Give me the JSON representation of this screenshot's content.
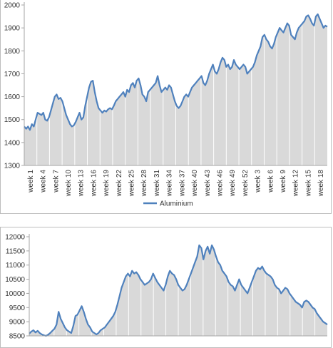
{
  "colors": {
    "line": "#4f81bd",
    "fill": "#d9d9d9",
    "axis": "#a6a6a6",
    "tick_text": "#333333",
    "panel_border": "#bdbdbd"
  },
  "chart_data": [
    {
      "type": "area",
      "title": "",
      "xlabel": "",
      "ylabel": "",
      "ylim": [
        1300,
        2000
      ],
      "yticks": [
        1300,
        1400,
        1500,
        1600,
        1700,
        1800,
        1900,
        2000
      ],
      "x_tick_labels": [
        "week 1",
        "week 4",
        "week 7",
        "week 10",
        "week 13",
        "week 16",
        "week 19",
        "week 22",
        "week 25",
        "week 28",
        "week 31",
        "week 34",
        "week 37",
        "week 40",
        "week 43",
        "week 46",
        "week 49",
        "week 52",
        "week 3",
        "week 6",
        "week 9",
        "week 12",
        "week 15",
        "week 18"
      ],
      "grid": false,
      "legend_position": "bottom",
      "series": [
        {
          "name": "Aluminium",
          "values": [
            1470,
            1460,
            1470,
            1455,
            1480,
            1470,
            1500,
            1530,
            1525,
            1520,
            1530,
            1500,
            1495,
            1510,
            1540,
            1570,
            1600,
            1610,
            1590,
            1595,
            1580,
            1550,
            1520,
            1500,
            1480,
            1470,
            1475,
            1490,
            1510,
            1530,
            1500,
            1510,
            1560,
            1600,
            1640,
            1665,
            1670,
            1620,
            1580,
            1550,
            1540,
            1530,
            1540,
            1535,
            1545,
            1550,
            1545,
            1560,
            1580,
            1590,
            1600,
            1610,
            1620,
            1600,
            1630,
            1620,
            1650,
            1660,
            1640,
            1670,
            1680,
            1650,
            1610,
            1600,
            1580,
            1620,
            1630,
            1640,
            1650,
            1660,
            1690,
            1650,
            1620,
            1630,
            1640,
            1630,
            1650,
            1640,
            1610,
            1580,
            1560,
            1550,
            1560,
            1580,
            1600,
            1610,
            1600,
            1620,
            1640,
            1650,
            1660,
            1670,
            1680,
            1690,
            1660,
            1650,
            1670,
            1700,
            1720,
            1740,
            1710,
            1700,
            1720,
            1750,
            1770,
            1760,
            1730,
            1740,
            1720,
            1730,
            1760,
            1740,
            1730,
            1720,
            1730,
            1740,
            1730,
            1700,
            1710,
            1720,
            1730,
            1750,
            1780,
            1800,
            1820,
            1860,
            1870,
            1850,
            1840,
            1820,
            1810,
            1830,
            1860,
            1880,
            1900,
            1890,
            1880,
            1900,
            1920,
            1910,
            1870,
            1860,
            1850,
            1880,
            1900,
            1910,
            1920,
            1930,
            1950,
            1955,
            1940,
            1920,
            1910,
            1950,
            1960,
            1940,
            1920,
            1900,
            1910,
            1905
          ]
        }
      ]
    },
    {
      "type": "area",
      "title": "",
      "xlabel": "",
      "ylabel": "",
      "ylim": [
        8500,
        12000
      ],
      "yticks": [
        8500,
        9000,
        9500,
        10000,
        10500,
        11000,
        11500,
        12000
      ],
      "grid": false,
      "series": [
        {
          "values": [
            8580,
            8650,
            8700,
            8620,
            8680,
            8600,
            8550,
            8520,
            8500,
            8540,
            8600,
            8680,
            8750,
            8900,
            9350,
            9100,
            8950,
            8800,
            8700,
            8650,
            8600,
            8850,
            9200,
            9250,
            9400,
            9550,
            9350,
            9100,
            8900,
            8800,
            8650,
            8600,
            8550,
            8600,
            8700,
            8750,
            8800,
            8900,
            9000,
            9100,
            9200,
            9350,
            9600,
            9900,
            10200,
            10400,
            10600,
            10700,
            10600,
            10800,
            10700,
            10750,
            10650,
            10500,
            10400,
            10300,
            10350,
            10400,
            10500,
            10700,
            10550,
            10400,
            10300,
            10200,
            10100,
            10300,
            10600,
            10800,
            10700,
            10650,
            10500,
            10300,
            10200,
            10100,
            10150,
            10300,
            10500,
            10700,
            10900,
            11100,
            11300,
            11700,
            11600,
            11200,
            11500,
            11650,
            11400,
            11700,
            11550,
            11300,
            11100,
            11000,
            10800,
            10700,
            10600,
            10400,
            10300,
            10250,
            10100,
            10300,
            10500,
            10300,
            10200,
            10100,
            10000,
            10200,
            10400,
            10600,
            10800,
            10900,
            10850,
            10950,
            10800,
            10700,
            10650,
            10600,
            10500,
            10300,
            10200,
            10150,
            10000,
            10100,
            10200,
            10150,
            10000,
            9900,
            9800,
            9700,
            9650,
            9600,
            9500,
            9700,
            9750,
            9700,
            9600,
            9500,
            9450,
            9300,
            9200,
            9100,
            9000,
            8950,
            8900
          ]
        }
      ]
    }
  ]
}
